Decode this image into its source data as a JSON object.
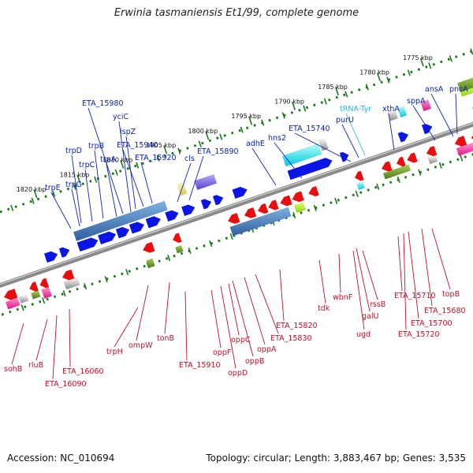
{
  "title": "Erwinia tasmaniensis Et1/99, complete genome",
  "footer": {
    "accession": "Accession: NC_010694",
    "summary": "Topology: circular; Length: 3,883,467 bp; Genes: 3,535"
  },
  "colors": {
    "forward_label": "#0b23b5",
    "trna_label": "#33b4d8",
    "reverse_label": "#c0102a",
    "tick_green": "#1a7a1a"
  },
  "kbp_ticks": [
    "1820 kbp",
    "1815 kbp",
    "1810 kbp",
    "1805 kbp",
    "1800 kbp",
    "1795 kbp",
    "1790 kbp",
    "1785 kbp",
    "1780 kbp",
    "1775 kbp"
  ],
  "top_labels": [
    {
      "text": "trpE",
      "style": "fwd"
    },
    {
      "text": "trpG",
      "style": "fwd"
    },
    {
      "text": "trpD",
      "style": "fwd"
    },
    {
      "text": "trpC",
      "style": "fwd"
    },
    {
      "text": "trpB",
      "style": "fwd"
    },
    {
      "text": "trpA",
      "style": "fwd"
    },
    {
      "text": "ETA_15980",
      "style": "fwd"
    },
    {
      "text": "yciC",
      "style": "fwd"
    },
    {
      "text": "ispZ",
      "style": "fwd"
    },
    {
      "text": "ETA_15940",
      "style": "fwd"
    },
    {
      "text": "ETA_15920",
      "style": "fwd"
    },
    {
      "text": "cls",
      "style": "fwd"
    },
    {
      "text": "ETA_15890",
      "style": "fwd"
    },
    {
      "text": "adhE",
      "style": "fwd"
    },
    {
      "text": "hns2",
      "style": "fwd"
    },
    {
      "text": "ETA_15740",
      "style": "fwd"
    },
    {
      "text": "purU",
      "style": "fwd"
    },
    {
      "text": "tRNA-Tyr",
      "style": "trna"
    },
    {
      "text": "xthA",
      "style": "fwd"
    },
    {
      "text": "sppA",
      "style": "fwd"
    },
    {
      "text": "ansA",
      "style": "fwd"
    },
    {
      "text": "pncA",
      "style": "fwd"
    }
  ],
  "bottom_labels": [
    "sohB",
    "rluB",
    "ETA_16090",
    "ETA_16060",
    "trpH",
    "ompW",
    "tonB",
    "ETA_15910",
    "oppF",
    "oppD",
    "oppC",
    "oppB",
    "oppA",
    "ETA_15830",
    "ETA_15820",
    "tdk",
    "wbnF",
    "ugd",
    "galU",
    "rssB",
    "ETA_15710",
    "ETA_15720",
    "ETA_15700",
    "ETA_15680",
    "topB"
  ]
}
